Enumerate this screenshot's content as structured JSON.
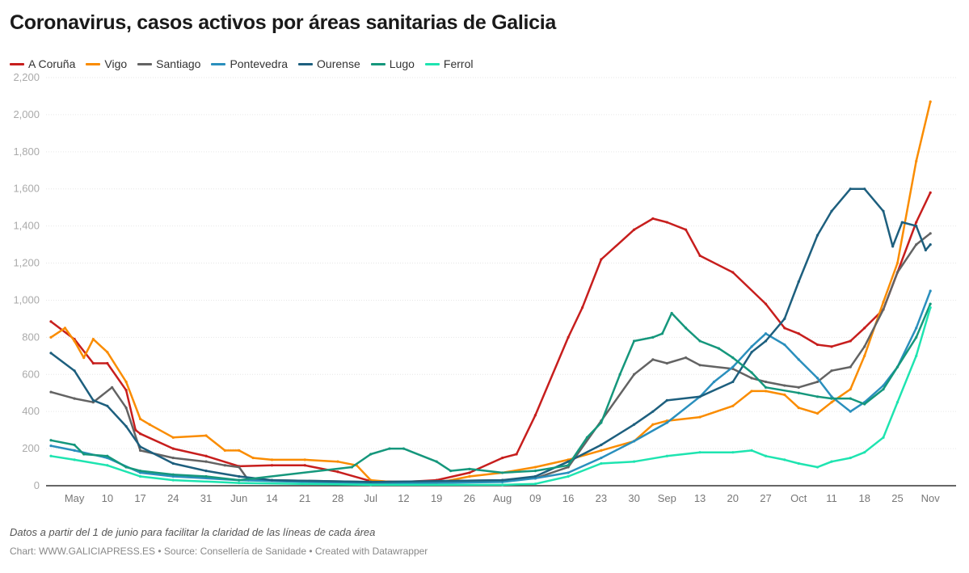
{
  "chart_data": {
    "type": "line",
    "title": "Coronavirus, casos activos por áreas sanitarias de Galicia",
    "notes": "Datos a partir del 1 de junio para facilitar la claridad de las líneas de cada área",
    "credit": "Chart: WWW.GALICIAPRESS.ES • Source: Consellería de Sanidade • Created with Datawrapper",
    "ylim": [
      0,
      2200
    ],
    "yticks": [
      0,
      200,
      400,
      600,
      800,
      1000,
      1200,
      1400,
      1600,
      1800,
      2000,
      2200
    ],
    "ytick_labels": [
      "0",
      "200",
      "400",
      "600",
      "800",
      "1,000",
      "1,200",
      "1,400",
      "1,600",
      "1,800",
      "2,000",
      "2,200"
    ],
    "xlim": [
      "04-28",
      "11-03"
    ],
    "xticks": [
      "05-03",
      "05-10",
      "05-17",
      "05-24",
      "05-31",
      "06-07",
      "06-14",
      "06-21",
      "06-28",
      "07-05",
      "07-12",
      "07-19",
      "07-26",
      "08-02",
      "08-09",
      "08-16",
      "08-23",
      "08-30",
      "09-06",
      "09-13",
      "09-20",
      "09-27",
      "10-04",
      "10-11",
      "10-18",
      "10-25",
      "11-01"
    ],
    "xtick_labels": [
      "May",
      "10",
      "17",
      "24",
      "31",
      "Jun",
      "14",
      "21",
      "28",
      "Jul",
      "12",
      "19",
      "26",
      "Aug",
      "09",
      "16",
      "23",
      "30",
      "Sep",
      "13",
      "20",
      "27",
      "Oct",
      "11",
      "18",
      "25",
      "Nov"
    ],
    "grid": true,
    "legend_placement": "top-left",
    "series": [
      {
        "name": "A Coruña",
        "color": "#c71e1d",
        "points": [
          [
            "04-28",
            885
          ],
          [
            "05-03",
            790
          ],
          [
            "05-07",
            660
          ],
          [
            "05-10",
            660
          ],
          [
            "05-14",
            515
          ],
          [
            "05-16",
            300
          ],
          [
            "05-17",
            280
          ],
          [
            "05-24",
            200
          ],
          [
            "05-31",
            160
          ],
          [
            "06-07",
            105
          ],
          [
            "06-14",
            110
          ],
          [
            "06-21",
            110
          ],
          [
            "06-28",
            75
          ],
          [
            "07-05",
            25
          ],
          [
            "07-12",
            20
          ],
          [
            "07-19",
            30
          ],
          [
            "07-26",
            70
          ],
          [
            "08-02",
            150
          ],
          [
            "08-05",
            170
          ],
          [
            "08-09",
            380
          ],
          [
            "08-16",
            800
          ],
          [
            "08-19",
            960
          ],
          [
            "08-23",
            1220
          ],
          [
            "08-30",
            1380
          ],
          [
            "09-03",
            1440
          ],
          [
            "09-06",
            1420
          ],
          [
            "09-10",
            1380
          ],
          [
            "09-13",
            1240
          ],
          [
            "09-20",
            1150
          ],
          [
            "09-27",
            980
          ],
          [
            "10-01",
            850
          ],
          [
            "10-04",
            820
          ],
          [
            "10-08",
            760
          ],
          [
            "10-11",
            750
          ],
          [
            "10-15",
            780
          ],
          [
            "10-18",
            850
          ],
          [
            "10-22",
            950
          ],
          [
            "10-25",
            1150
          ],
          [
            "10-29",
            1420
          ],
          [
            "11-01",
            1580
          ]
        ]
      },
      {
        "name": "Vigo",
        "color": "#fa8c00",
        "points": [
          [
            "04-28",
            800
          ],
          [
            "05-01",
            850
          ],
          [
            "05-03",
            780
          ],
          [
            "05-05",
            690
          ],
          [
            "05-07",
            790
          ],
          [
            "05-10",
            720
          ],
          [
            "05-14",
            560
          ],
          [
            "05-17",
            360
          ],
          [
            "05-19",
            330
          ],
          [
            "05-24",
            260
          ],
          [
            "05-31",
            270
          ],
          [
            "06-04",
            190
          ],
          [
            "06-07",
            190
          ],
          [
            "06-10",
            150
          ],
          [
            "06-14",
            140
          ],
          [
            "06-21",
            140
          ],
          [
            "06-28",
            130
          ],
          [
            "07-02",
            110
          ],
          [
            "07-05",
            30
          ],
          [
            "07-12",
            15
          ],
          [
            "07-19",
            15
          ],
          [
            "07-26",
            50
          ],
          [
            "08-02",
            70
          ],
          [
            "08-09",
            100
          ],
          [
            "08-16",
            140
          ],
          [
            "08-23",
            190
          ],
          [
            "08-30",
            240
          ],
          [
            "09-03",
            330
          ],
          [
            "09-06",
            350
          ],
          [
            "09-13",
            370
          ],
          [
            "09-20",
            430
          ],
          [
            "09-24",
            510
          ],
          [
            "09-27",
            510
          ],
          [
            "10-01",
            490
          ],
          [
            "10-04",
            420
          ],
          [
            "10-08",
            390
          ],
          [
            "10-11",
            450
          ],
          [
            "10-15",
            520
          ],
          [
            "10-18",
            700
          ],
          [
            "10-22",
            990
          ],
          [
            "10-25",
            1200
          ],
          [
            "10-29",
            1750
          ],
          [
            "11-01",
            2070
          ]
        ]
      },
      {
        "name": "Santiago",
        "color": "#636363",
        "points": [
          [
            "04-28",
            505
          ],
          [
            "05-03",
            470
          ],
          [
            "05-07",
            450
          ],
          [
            "05-11",
            530
          ],
          [
            "05-14",
            420
          ],
          [
            "05-17",
            190
          ],
          [
            "05-24",
            150
          ],
          [
            "05-31",
            130
          ],
          [
            "06-04",
            110
          ],
          [
            "06-07",
            100
          ],
          [
            "06-09",
            30
          ],
          [
            "06-14",
            30
          ],
          [
            "07-05",
            20
          ],
          [
            "08-02",
            30
          ],
          [
            "08-09",
            40
          ],
          [
            "08-16",
            100
          ],
          [
            "08-23",
            350
          ],
          [
            "08-30",
            600
          ],
          [
            "09-03",
            680
          ],
          [
            "09-06",
            660
          ],
          [
            "09-10",
            690
          ],
          [
            "09-13",
            650
          ],
          [
            "09-20",
            630
          ],
          [
            "09-24",
            580
          ],
          [
            "09-27",
            560
          ],
          [
            "10-01",
            540
          ],
          [
            "10-04",
            530
          ],
          [
            "10-08",
            560
          ],
          [
            "10-11",
            620
          ],
          [
            "10-15",
            640
          ],
          [
            "10-18",
            750
          ],
          [
            "10-22",
            950
          ],
          [
            "10-25",
            1150
          ],
          [
            "10-29",
            1300
          ],
          [
            "11-01",
            1360
          ]
        ]
      },
      {
        "name": "Pontevedra",
        "color": "#2a8fbd",
        "points": [
          [
            "04-28",
            215
          ],
          [
            "05-03",
            190
          ],
          [
            "05-10",
            150
          ],
          [
            "05-17",
            70
          ],
          [
            "05-24",
            50
          ],
          [
            "06-07",
            30
          ],
          [
            "07-05",
            10
          ],
          [
            "08-02",
            20
          ],
          [
            "08-09",
            40
          ],
          [
            "08-16",
            70
          ],
          [
            "08-23",
            150
          ],
          [
            "08-30",
            240
          ],
          [
            "09-06",
            340
          ],
          [
            "09-13",
            480
          ],
          [
            "09-16",
            560
          ],
          [
            "09-20",
            640
          ],
          [
            "09-24",
            750
          ],
          [
            "09-27",
            820
          ],
          [
            "10-01",
            760
          ],
          [
            "10-04",
            680
          ],
          [
            "10-08",
            580
          ],
          [
            "10-11",
            480
          ],
          [
            "10-15",
            400
          ],
          [
            "10-18",
            450
          ],
          [
            "10-22",
            540
          ],
          [
            "10-25",
            640
          ],
          [
            "10-29",
            850
          ],
          [
            "11-01",
            1050
          ]
        ]
      },
      {
        "name": "Ourense",
        "color": "#1d5f7e",
        "points": [
          [
            "04-28",
            715
          ],
          [
            "05-03",
            620
          ],
          [
            "05-07",
            460
          ],
          [
            "05-10",
            430
          ],
          [
            "05-14",
            320
          ],
          [
            "05-17",
            210
          ],
          [
            "05-24",
            120
          ],
          [
            "05-31",
            80
          ],
          [
            "06-07",
            50
          ],
          [
            "06-14",
            30
          ],
          [
            "07-05",
            20
          ],
          [
            "08-02",
            30
          ],
          [
            "08-09",
            50
          ],
          [
            "08-16",
            130
          ],
          [
            "08-23",
            220
          ],
          [
            "08-30",
            330
          ],
          [
            "09-03",
            400
          ],
          [
            "09-06",
            460
          ],
          [
            "09-13",
            480
          ],
          [
            "09-20",
            560
          ],
          [
            "09-24",
            720
          ],
          [
            "09-27",
            780
          ],
          [
            "10-01",
            900
          ],
          [
            "10-04",
            1100
          ],
          [
            "10-08",
            1350
          ],
          [
            "10-11",
            1480
          ],
          [
            "10-15",
            1600
          ],
          [
            "10-18",
            1600
          ],
          [
            "10-22",
            1480
          ],
          [
            "10-24",
            1290
          ],
          [
            "10-26",
            1420
          ],
          [
            "10-29",
            1400
          ],
          [
            "10-31",
            1270
          ],
          [
            "11-01",
            1300
          ]
        ]
      },
      {
        "name": "Lugo",
        "color": "#15977c",
        "points": [
          [
            "04-28",
            245
          ],
          [
            "05-03",
            220
          ],
          [
            "05-05",
            170
          ],
          [
            "05-10",
            160
          ],
          [
            "05-14",
            100
          ],
          [
            "05-17",
            80
          ],
          [
            "05-24",
            60
          ],
          [
            "05-31",
            50
          ],
          [
            "06-07",
            30
          ],
          [
            "07-01",
            100
          ],
          [
            "07-05",
            170
          ],
          [
            "07-09",
            200
          ],
          [
            "07-12",
            200
          ],
          [
            "07-19",
            130
          ],
          [
            "07-22",
            80
          ],
          [
            "07-26",
            90
          ],
          [
            "08-02",
            70
          ],
          [
            "08-09",
            80
          ],
          [
            "08-16",
            110
          ],
          [
            "08-20",
            260
          ],
          [
            "08-23",
            340
          ],
          [
            "08-27",
            600
          ],
          [
            "08-30",
            780
          ],
          [
            "09-03",
            800
          ],
          [
            "09-05",
            820
          ],
          [
            "09-07",
            930
          ],
          [
            "09-10",
            850
          ],
          [
            "09-13",
            780
          ],
          [
            "09-17",
            740
          ],
          [
            "09-20",
            690
          ],
          [
            "09-24",
            610
          ],
          [
            "09-27",
            530
          ],
          [
            "10-04",
            500
          ],
          [
            "10-08",
            480
          ],
          [
            "10-11",
            470
          ],
          [
            "10-15",
            470
          ],
          [
            "10-18",
            440
          ],
          [
            "10-22",
            520
          ],
          [
            "10-25",
            640
          ],
          [
            "10-29",
            800
          ],
          [
            "11-01",
            980
          ]
        ]
      },
      {
        "name": "Ferrol",
        "color": "#1ee4b0",
        "points": [
          [
            "04-28",
            160
          ],
          [
            "05-03",
            140
          ],
          [
            "05-10",
            110
          ],
          [
            "05-17",
            50
          ],
          [
            "05-24",
            30
          ],
          [
            "06-07",
            15
          ],
          [
            "07-05",
            5
          ],
          [
            "08-02",
            5
          ],
          [
            "08-09",
            10
          ],
          [
            "08-16",
            50
          ],
          [
            "08-23",
            120
          ],
          [
            "08-30",
            130
          ],
          [
            "09-06",
            160
          ],
          [
            "09-13",
            180
          ],
          [
            "09-20",
            180
          ],
          [
            "09-24",
            190
          ],
          [
            "09-27",
            160
          ],
          [
            "10-01",
            140
          ],
          [
            "10-04",
            120
          ],
          [
            "10-08",
            100
          ],
          [
            "10-11",
            130
          ],
          [
            "10-15",
            150
          ],
          [
            "10-18",
            180
          ],
          [
            "10-22",
            260
          ],
          [
            "10-25",
            450
          ],
          [
            "10-29",
            700
          ],
          [
            "11-01",
            960
          ]
        ]
      }
    ]
  }
}
